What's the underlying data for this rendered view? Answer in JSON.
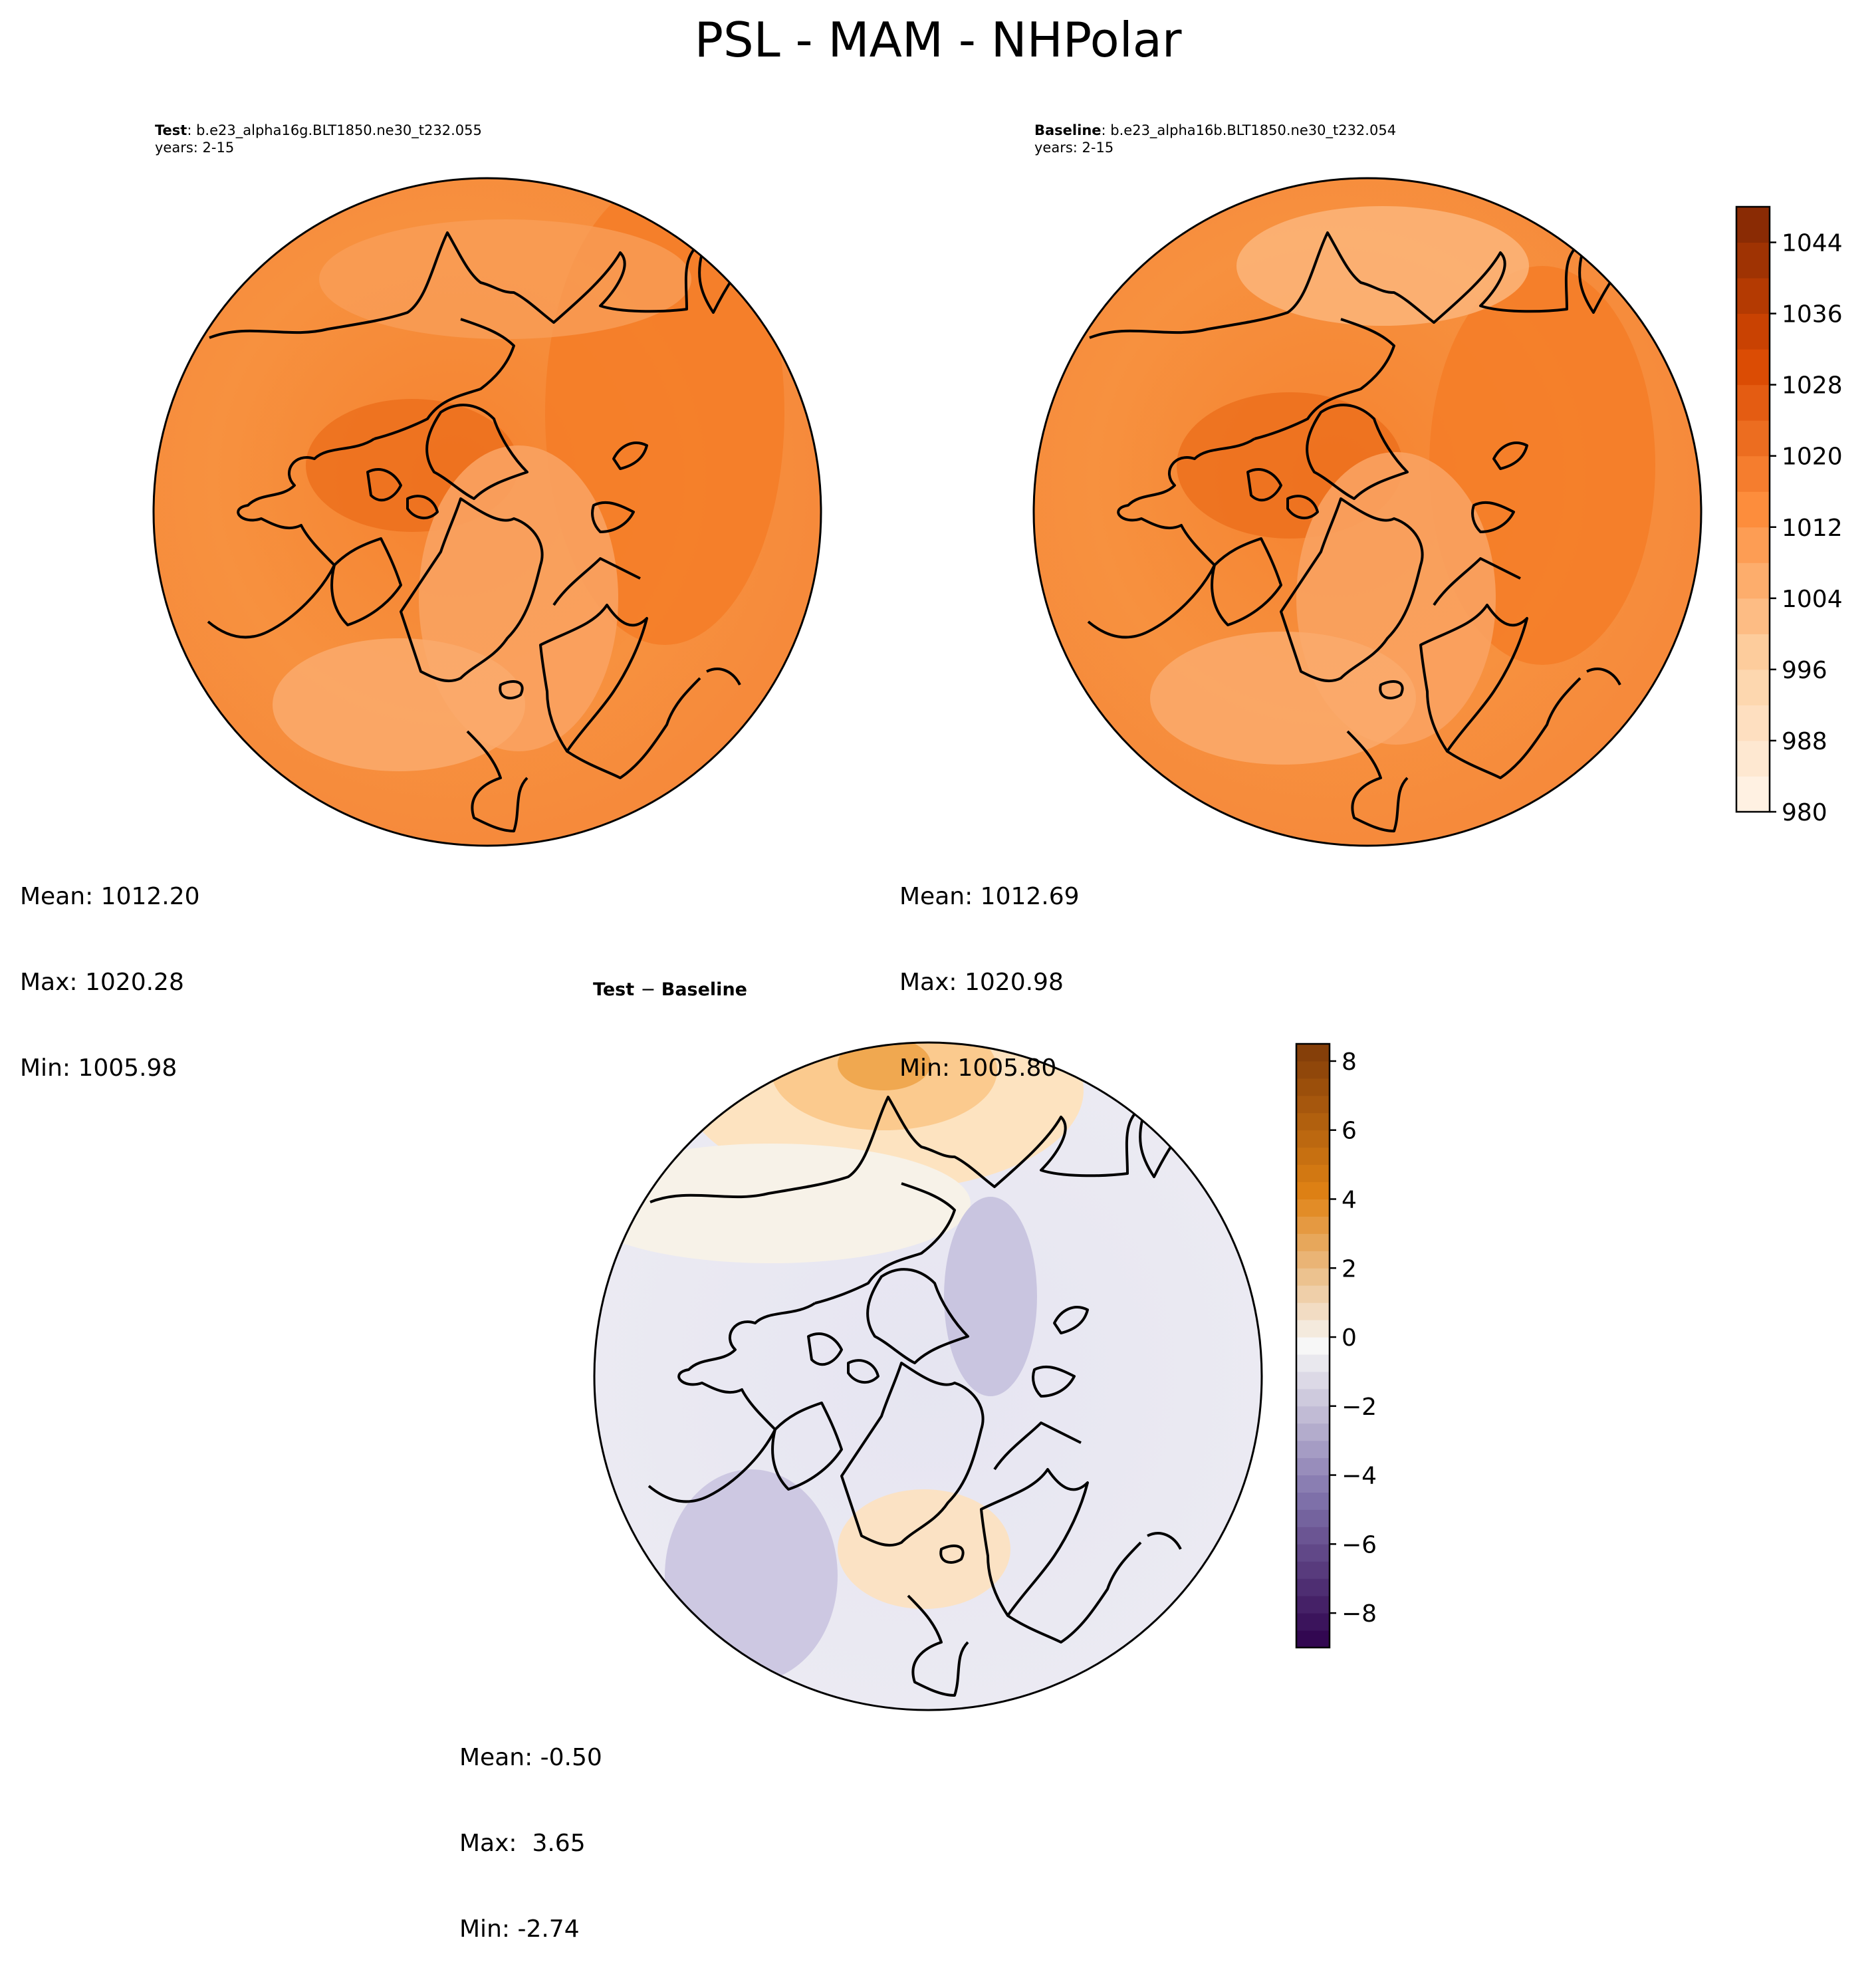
{
  "suptitle": "PSL - MAM - NHPolar",
  "panels": [
    {
      "label": "Test",
      "case": "b.e23_alpha16g.BLT1850.ne30_t232.055",
      "years": "years: 2-15",
      "stats": {
        "mean": "Mean: 1012.20",
        "max": "Max: 1020.28",
        "min": "Min: 1005.98"
      }
    },
    {
      "label": "Baseline",
      "case": "b.e23_alpha16b.BLT1850.ne30_t232.054",
      "years": "years: 2-15",
      "stats": {
        "mean": "Mean: 1012.69",
        "max": "Max: 1020.98",
        "min": "Min: 1005.80"
      }
    },
    {
      "label": "Test",
      "label2": "Baseline",
      "stats": {
        "mean": "Mean: -0.50",
        "max": "Max:  3.65",
        "min": "Min: -2.74"
      }
    }
  ],
  "chart_data": [
    {
      "type": "heatmap",
      "title": "Test : b.e23_alpha16g.BLT1850.ne30_t232.055",
      "projection": "north polar stereographic",
      "colormap": "Oranges",
      "colorbar": {
        "min": 980,
        "max": 1048,
        "step": 4,
        "ticks": [
          980,
          988,
          996,
          1004,
          1012,
          1020,
          1028,
          1036,
          1044
        ]
      },
      "summary": {
        "mean": 1012.2,
        "max": 1020.28,
        "min": 1005.98
      }
    },
    {
      "type": "heatmap",
      "title": "Baseline : b.e23_alpha16b.BLT1850.ne30_t232.054",
      "projection": "north polar stereographic",
      "colormap": "Oranges",
      "colorbar": {
        "min": 980,
        "max": 1048,
        "step": 4,
        "ticks": [
          980,
          988,
          996,
          1004,
          1012,
          1020,
          1028,
          1036,
          1044
        ]
      },
      "summary": {
        "mean": 1012.69,
        "max": 1020.98,
        "min": 1005.8
      }
    },
    {
      "type": "heatmap",
      "title": "Test − Baseline",
      "projection": "north polar stereographic",
      "colormap": "PuOr_r",
      "colorbar": {
        "min": -9,
        "max": 8.5,
        "step": 0.5,
        "ticks": [
          -8,
          -6,
          -4,
          -2,
          0,
          2,
          4,
          6,
          8
        ]
      },
      "summary": {
        "mean": -0.5,
        "max": 3.65,
        "min": -2.74
      }
    }
  ]
}
